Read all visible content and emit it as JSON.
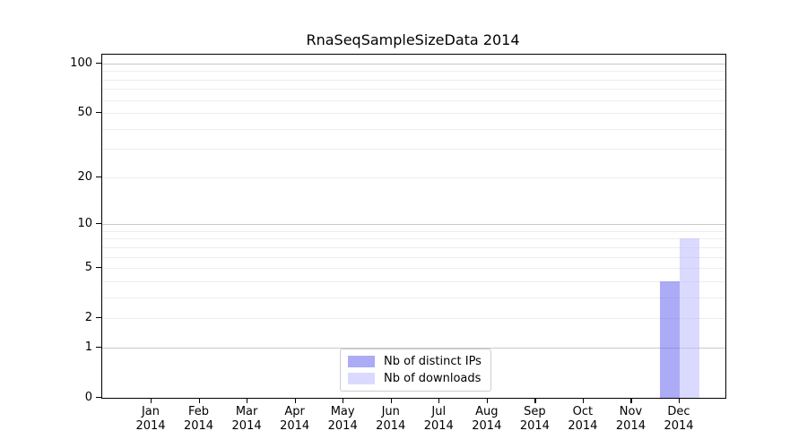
{
  "chart_data": {
    "type": "bar",
    "title": "RnaSeqSampleSizeData 2014",
    "categories": [
      "Jan",
      "Feb",
      "Mar",
      "Apr",
      "May",
      "Jun",
      "Jul",
      "Aug",
      "Sep",
      "Oct",
      "Nov",
      "Dec"
    ],
    "x_tick_second_line": "2014",
    "series": [
      {
        "name": "Nb of distinct IPs",
        "color": "#6666ee",
        "fill_alpha": 0.55,
        "values": [
          0,
          0,
          0,
          0,
          0,
          0,
          0,
          0,
          0,
          0,
          0,
          4
        ]
      },
      {
        "name": "Nb of downloads",
        "color": "#bbbbff",
        "fill_alpha": 0.55,
        "values": [
          0,
          0,
          0,
          0,
          0,
          0,
          0,
          0,
          0,
          0,
          0,
          8
        ]
      }
    ],
    "y_axis": {
      "scale": "log10(value+1)",
      "tick_labels": [
        "0",
        "1",
        "2",
        "5",
        "10",
        "20",
        "50",
        "100"
      ],
      "tick_values": [
        0,
        1,
        2,
        5,
        10,
        20,
        50,
        100
      ],
      "major_gridlines": [
        1,
        10,
        100
      ],
      "minor_gridlines": [
        2,
        3,
        4,
        5,
        6,
        7,
        8,
        9,
        20,
        30,
        40,
        50,
        60,
        70,
        80,
        90
      ],
      "range": [
        0,
        113
      ]
    },
    "legend": {
      "position": "bottom-center",
      "entries": [
        "Nb of distinct IPs",
        "Nb of downloads"
      ]
    },
    "grid": "horizontal",
    "background": "#ffffff"
  }
}
